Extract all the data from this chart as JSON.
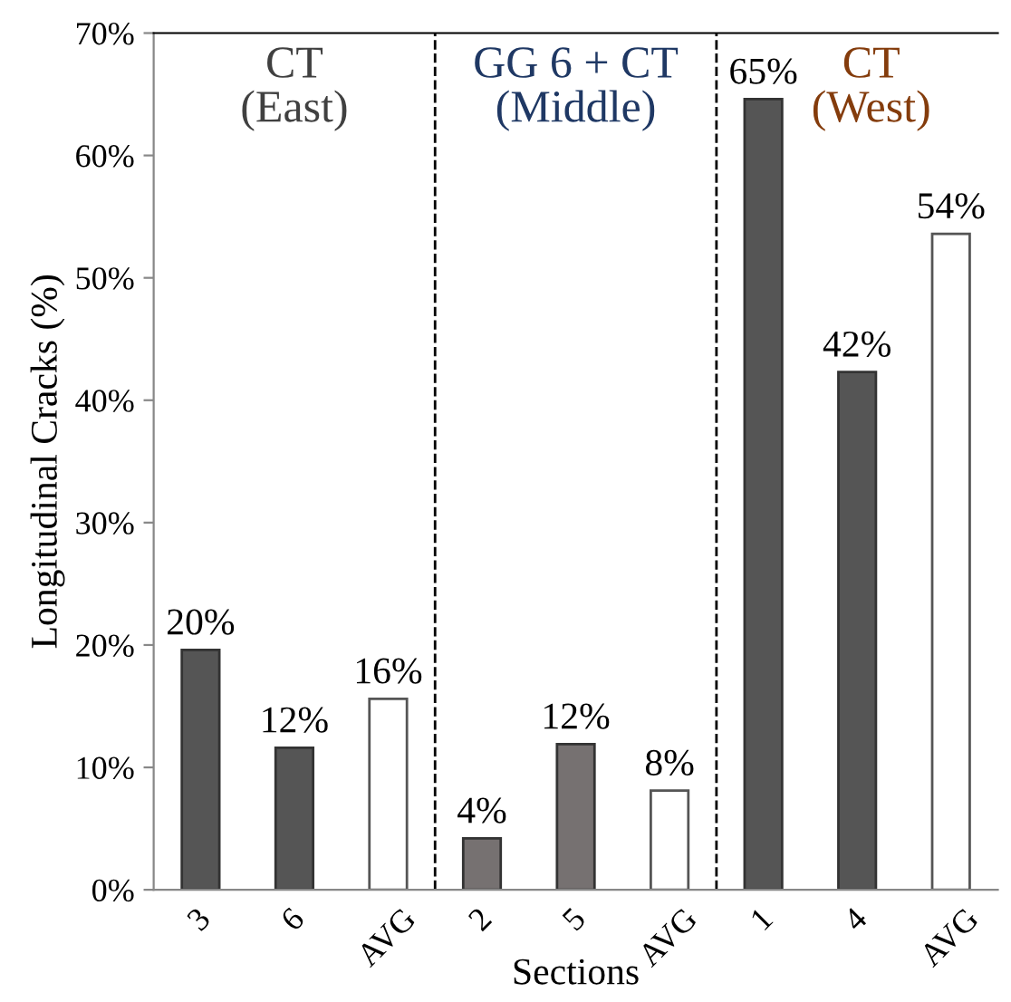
{
  "chart_data": {
    "type": "bar",
    "xlabel": "Sections",
    "ylabel": "Longitudinal Cracks (%)",
    "categories": [
      "3",
      "6",
      "AVG",
      "2",
      "5",
      "AVG",
      "1",
      "4",
      "AVG"
    ],
    "values": [
      19.6,
      11.6,
      15.6,
      4.2,
      11.9,
      8.1,
      64.6,
      42.3,
      53.6
    ],
    "colors": [
      "#555555",
      "#555555",
      "#ffffff",
      "#767171",
      "#767171",
      "#ffffff",
      "#555555",
      "#555555",
      "#ffffff"
    ],
    "value_labels": [
      "20%",
      "12%",
      "16%",
      "4%",
      "12%",
      "8%",
      "65%",
      "42%",
      "54%"
    ],
    "ylim": [
      0,
      70
    ],
    "yticks": [
      {
        "value": 0,
        "label": "0%"
      },
      {
        "value": 10,
        "label": "10%"
      },
      {
        "value": 20,
        "label": "20%"
      },
      {
        "value": 30,
        "label": "30%"
      },
      {
        "value": 40,
        "label": "40%"
      },
      {
        "value": 50,
        "label": "50%"
      },
      {
        "value": 60,
        "label": "60%"
      },
      {
        "value": 70,
        "label": "70%"
      }
    ],
    "annotations": [
      "CT\n(East)",
      "GG 6 + CT\n(Middle)",
      "CT\n(West)"
    ],
    "grid": false,
    "legend": false
  }
}
